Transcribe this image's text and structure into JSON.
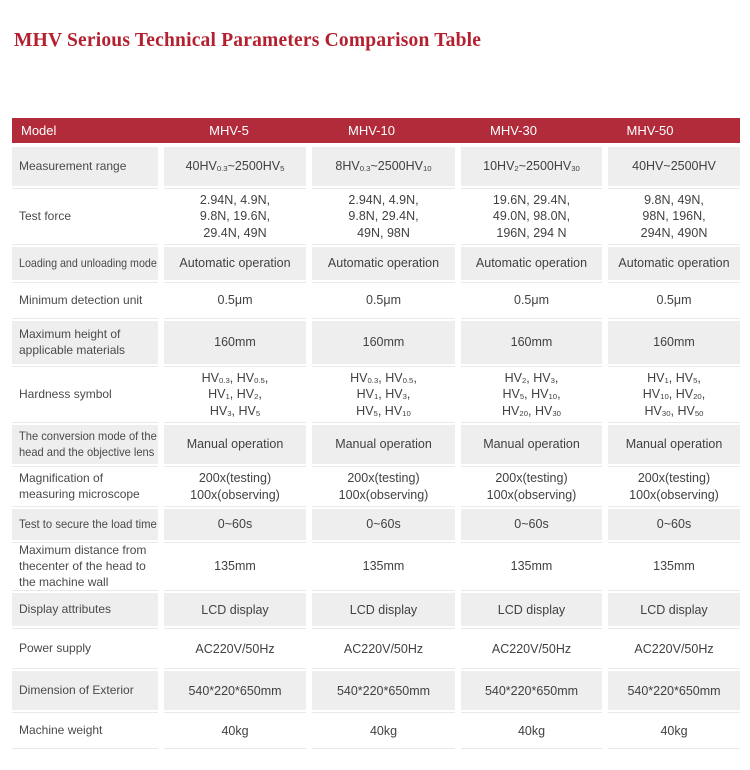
{
  "page_title": "MHV Serious Technical Parameters Comparison Table",
  "colors": {
    "title_red": "#b4202f",
    "header_bg": "#b12b3b",
    "row_gray": "#eeeeee",
    "header_text": "#ffffff",
    "body_text": "#414141"
  },
  "table": {
    "columns": [
      "Model",
      "MHV-5",
      "MHV-10",
      "MHV-30",
      "MHV-50"
    ],
    "rows": [
      {
        "label": "Measurement range",
        "values": [
          "40HV_{0.3}~2500HV_{5}",
          "8HV_{0.3}~2500HV_{10}",
          "10HV_{2}~2500HV_{30}",
          "40HV~2500HV"
        ]
      },
      {
        "label": "Test force",
        "values": [
          "2.94N, 4.9N,\n9.8N, 19.6N,\n29.4N, 49N",
          "2.94N, 4.9N,\n9.8N, 29.4N,\n49N, 98N",
          "19.6N, 29.4N,\n49.0N, 98.0N,\n196N, 294 N",
          "9.8N, 49N,\n98N, 196N,\n294N, 490N"
        ]
      },
      {
        "label": "Loading and unloading mode",
        "values": [
          "Automatic operation",
          "Automatic operation",
          "Automatic operation",
          "Automatic operation"
        ]
      },
      {
        "label": "Minimum detection unit",
        "values": [
          "0.5μm",
          "0.5μm",
          "0.5μm",
          "0.5μm"
        ]
      },
      {
        "label": "Maximum height of\napplicable materials",
        "values": [
          "160mm",
          "160mm",
          "160mm",
          "160mm"
        ]
      },
      {
        "label": "Hardness symbol",
        "values": [
          "HV_{0.3}, HV_{0.5},\nHV_{1}, HV_{2},\nHV_{3}, HV_{5}",
          "HV_{0.3}, HV_{0.5},\nHV_{1}, HV_{3},\nHV_{5}, HV_{10}",
          "HV_{2}, HV_{3},\nHV_{5}, HV_{10},\nHV_{20}, HV_{30}",
          "HV_{1}, HV_{5},\nHV_{10}, HV_{20},\nHV_{30}, HV_{50}"
        ]
      },
      {
        "label": "The conversion mode of the\nhead and the objective lens",
        "values": [
          "Manual operation",
          "Manual operation",
          "Manual operation",
          "Manual operation"
        ]
      },
      {
        "label": "Magnification of\nmeasuring microscope",
        "values": [
          "200x(testing)\n100x(observing)",
          "200x(testing)\n100x(observing)",
          "200x(testing)\n100x(observing)",
          "200x(testing)\n100x(observing)"
        ]
      },
      {
        "label": "Test to secure the load time",
        "values": [
          "0~60s",
          "0~60s",
          "0~60s",
          "0~60s"
        ]
      },
      {
        "label": "Maximum distance from\nthecenter of the head to\nthe machine wall",
        "values": [
          "135mm",
          "135mm",
          "135mm",
          "135mm"
        ]
      },
      {
        "label": "Display attributes",
        "values": [
          "LCD display",
          "LCD display",
          "LCD display",
          "LCD display"
        ]
      },
      {
        "label": "Power supply",
        "values": [
          "AC220V/50Hz",
          "AC220V/50Hz",
          "AC220V/50Hz",
          "AC220V/50Hz"
        ]
      },
      {
        "label": "Dimension of Exterior",
        "values": [
          "540*220*650mm",
          "540*220*650mm",
          "540*220*650mm",
          "540*220*650mm"
        ]
      },
      {
        "label": "Machine weight",
        "values": [
          "40kg",
          "40kg",
          "40kg",
          "40kg"
        ]
      }
    ]
  }
}
